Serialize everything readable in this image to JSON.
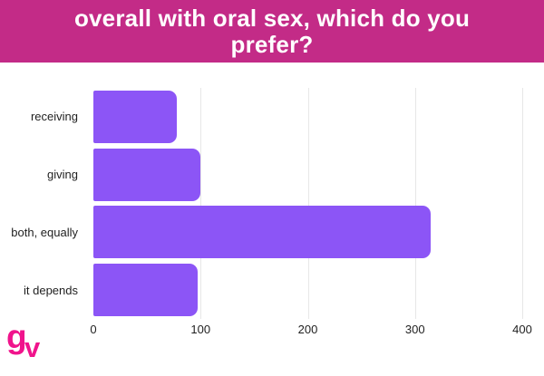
{
  "header": {
    "title": "overall with oral sex, which do you prefer?",
    "bg_color": "#c32b87",
    "text_color": "#ffffff"
  },
  "logo": {
    "letter_g": "g",
    "letter_v": "v",
    "color": "#f0148c"
  },
  "chart_data": {
    "type": "bar",
    "orientation": "horizontal",
    "title": "overall with oral sex, which do you prefer?",
    "categories": [
      "receiving",
      "giving",
      "both, equally",
      "it depends"
    ],
    "values": [
      78,
      100,
      315,
      97
    ],
    "xlabel": "",
    "ylabel": "",
    "xlim": [
      0,
      400
    ],
    "x_ticks": [
      "0",
      "100",
      "200",
      "300",
      "400"
    ],
    "grid": "vertical gridlines at labeled ticks",
    "legend": "none",
    "bar_color": "#8c55f6",
    "gridline_color": "#e7e7e7",
    "tick_text_color": "#1f1f1f"
  }
}
